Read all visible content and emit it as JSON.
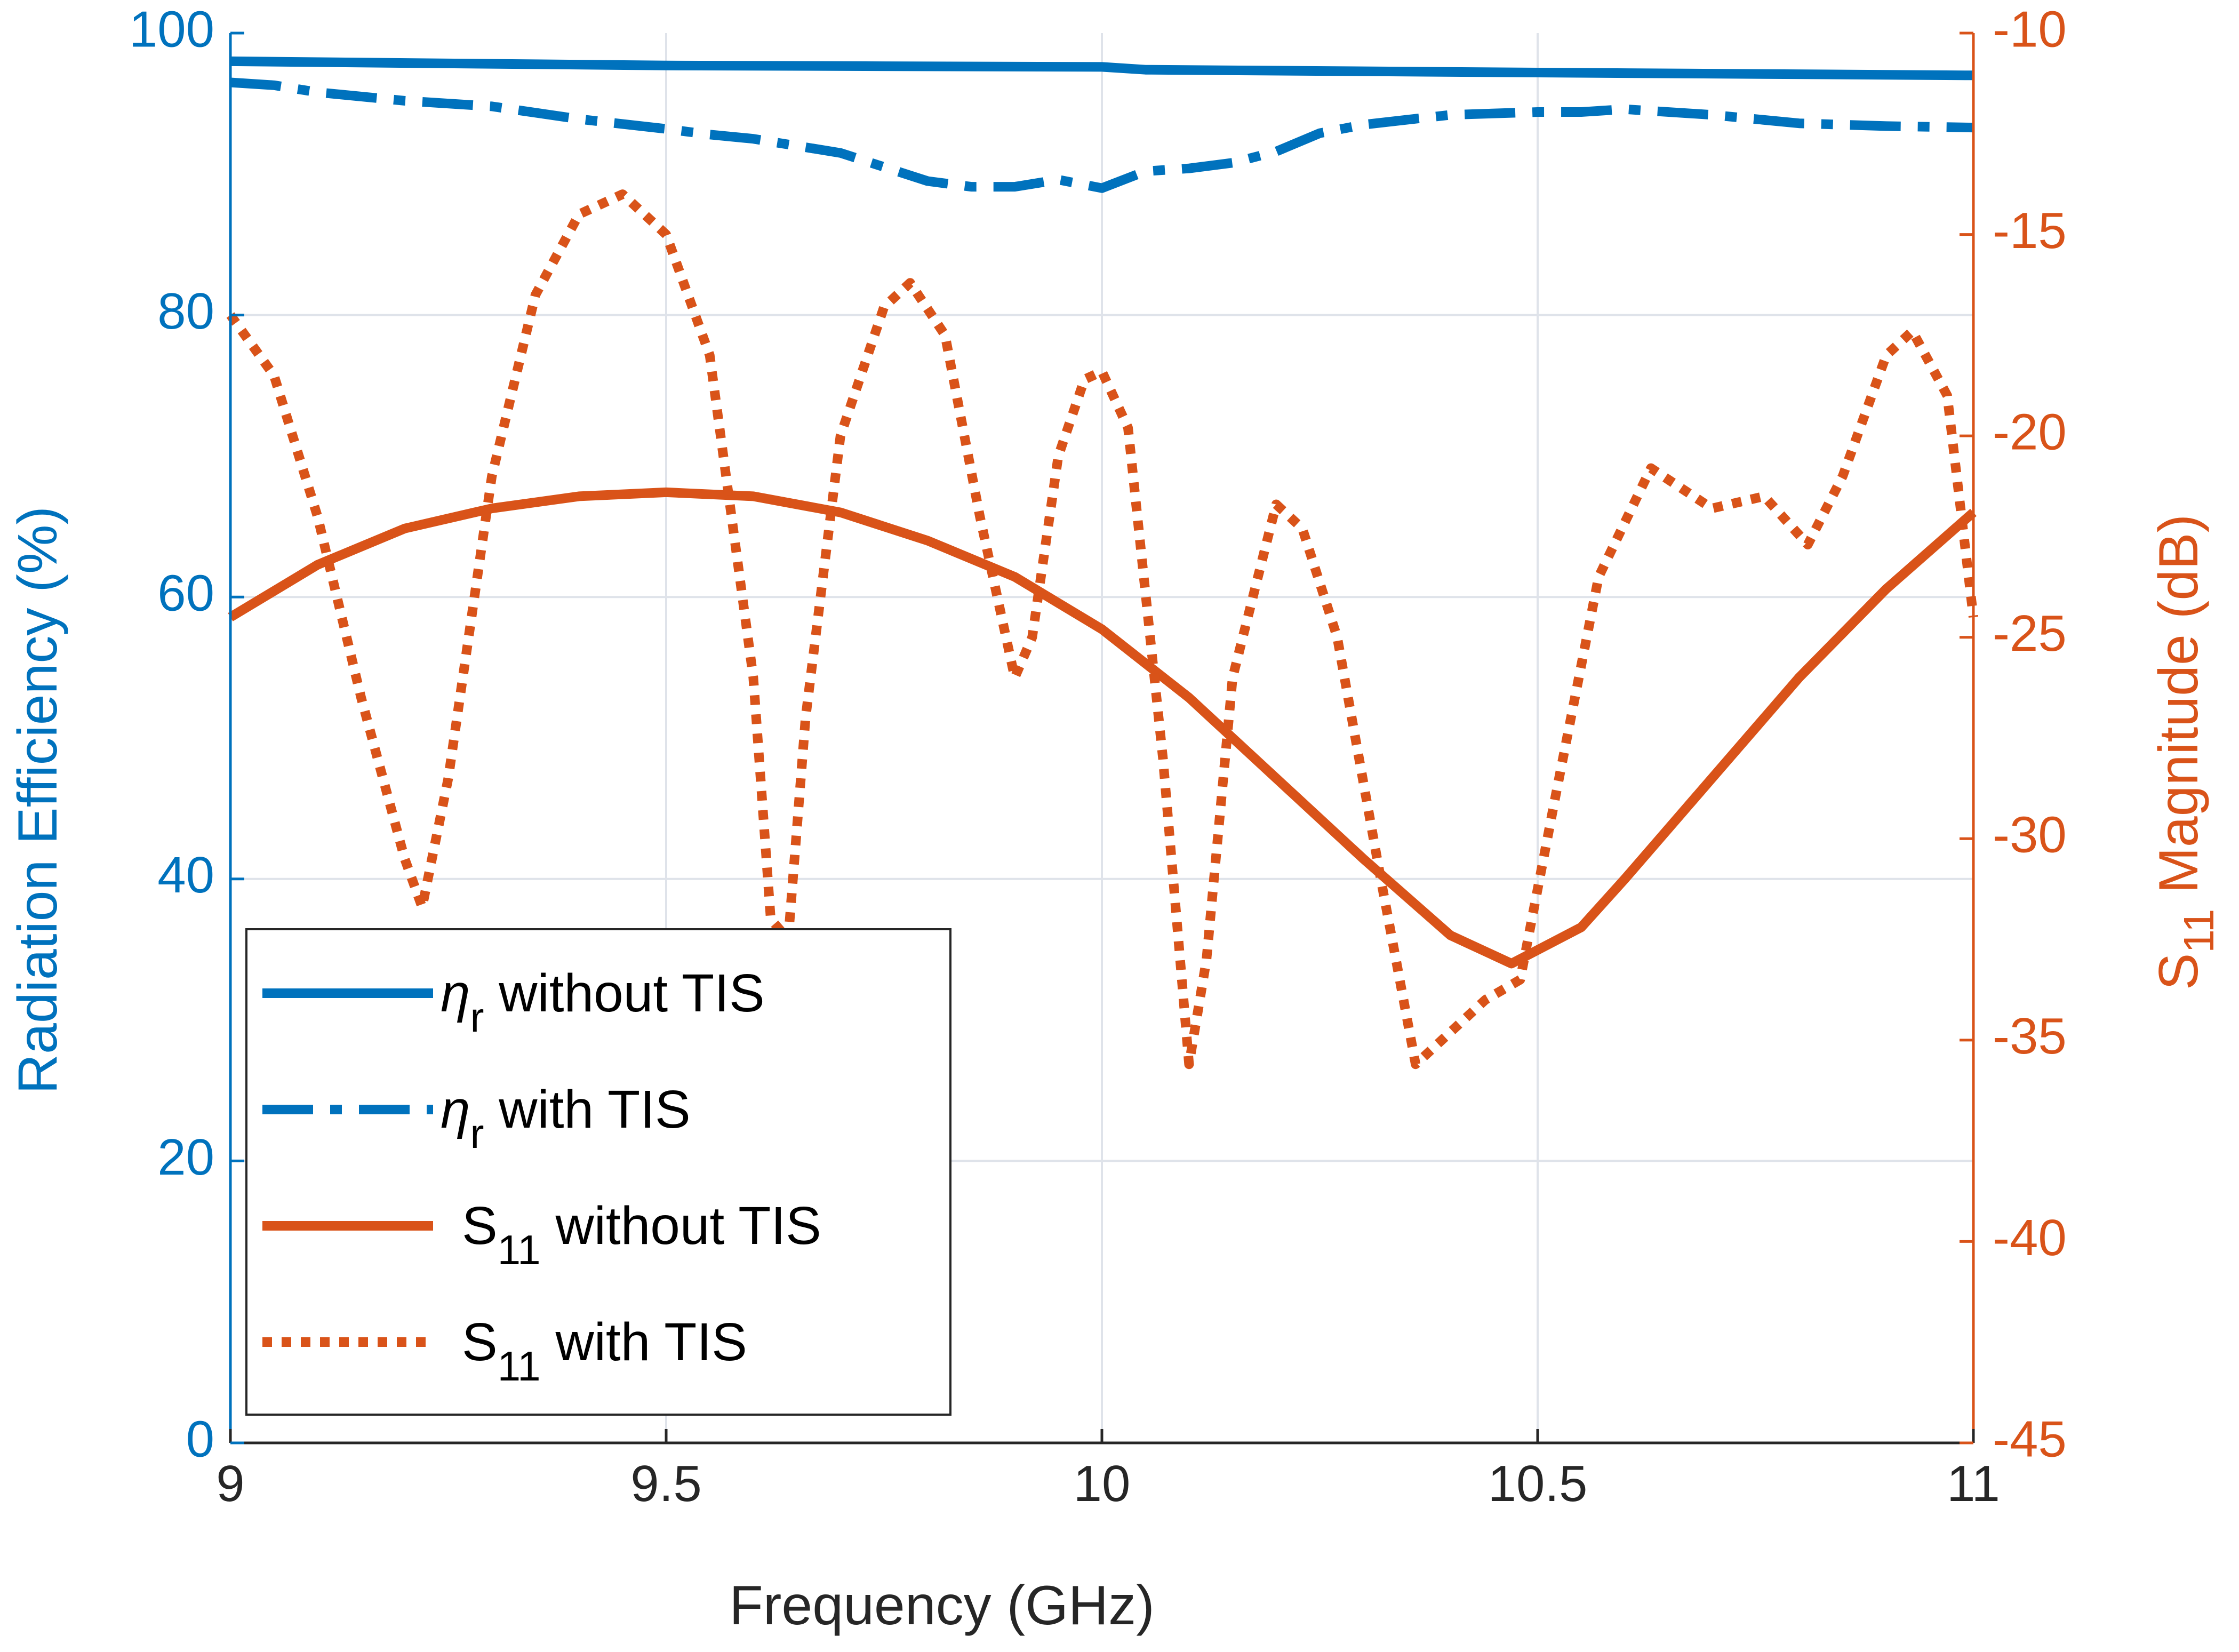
{
  "colors": {
    "blue": "#0072BD",
    "orange": "#D95319",
    "grid": "#DFE3EA",
    "text": "#262626"
  },
  "chart_data": {
    "type": "line",
    "title": "",
    "xlabel": "Frequency (GHz)",
    "ylabel_left": "Radiation Efficiency (%)",
    "ylabel_right": {
      "main": "S",
      "sub": "11",
      "rest": " Magnitude (dB)"
    },
    "xlim": [
      9,
      11
    ],
    "ylim_left": [
      0,
      100
    ],
    "ylim_right": [
      -45,
      -10
    ],
    "x_ticks": [
      "9",
      "9.5",
      "10",
      "10.5",
      "11"
    ],
    "x_tick_values": [
      9,
      9.5,
      10,
      10.5,
      11
    ],
    "y_left_ticks": [
      "0",
      "20",
      "40",
      "60",
      "80",
      "100"
    ],
    "y_left_tick_values": [
      0,
      20,
      40,
      60,
      80,
      100
    ],
    "y_right_ticks": [
      "-45",
      "-40",
      "-35",
      "-30",
      "-25",
      "-20",
      "-15",
      "-10"
    ],
    "y_right_tick_values": [
      -45,
      -40,
      -35,
      -30,
      -25,
      -20,
      -15,
      -10
    ],
    "grid": true,
    "legend_position": "bottom-left",
    "series": [
      {
        "name": "η_r without TIS",
        "legend": {
          "sym": "η",
          "sub": "r",
          "text": " without TIS"
        },
        "axis": "left",
        "color": "#0072BD",
        "style": "solid",
        "points": [
          [
            9,
            98.0
          ],
          [
            9.5,
            97.7
          ],
          [
            10,
            97.6
          ],
          [
            10.05,
            97.4
          ],
          [
            10.5,
            97.2
          ],
          [
            11,
            97.0
          ]
        ]
      },
      {
        "name": "η_r with TIS",
        "legend": {
          "sym": "η",
          "sub": "r",
          "text": " with TIS"
        },
        "axis": "left",
        "color": "#0072BD",
        "style": "dashdot",
        "points": [
          [
            9,
            96.5
          ],
          [
            9.05,
            96.3
          ],
          [
            9.1,
            95.8
          ],
          [
            9.2,
            95.2
          ],
          [
            9.3,
            94.8
          ],
          [
            9.4,
            93.9
          ],
          [
            9.5,
            93.2
          ],
          [
            9.55,
            92.8
          ],
          [
            9.6,
            92.5
          ],
          [
            9.7,
            91.5
          ],
          [
            9.8,
            89.5
          ],
          [
            9.85,
            89.1
          ],
          [
            9.9,
            89.1
          ],
          [
            9.95,
            89.6
          ],
          [
            10,
            89.0
          ],
          [
            10.05,
            90.2
          ],
          [
            10.1,
            90.4
          ],
          [
            10.15,
            90.8
          ],
          [
            10.2,
            91.6
          ],
          [
            10.25,
            92.9
          ],
          [
            10.3,
            93.5
          ],
          [
            10.4,
            94.2
          ],
          [
            10.5,
            94.4
          ],
          [
            10.55,
            94.4
          ],
          [
            10.6,
            94.6
          ],
          [
            10.7,
            94.2
          ],
          [
            10.8,
            93.6
          ],
          [
            10.9,
            93.4
          ],
          [
            11,
            93.3
          ]
        ]
      },
      {
        "name": "S11 without TIS",
        "legend": {
          "sym": "S",
          "sub": "11",
          "text": "  without TIS"
        },
        "axis": "right",
        "color": "#D95319",
        "style": "solid",
        "points": [
          [
            9,
            -24.5
          ],
          [
            9.1,
            -23.2
          ],
          [
            9.2,
            -22.3
          ],
          [
            9.3,
            -21.8
          ],
          [
            9.4,
            -21.5
          ],
          [
            9.5,
            -21.4
          ],
          [
            9.6,
            -21.5
          ],
          [
            9.7,
            -21.9
          ],
          [
            9.8,
            -22.6
          ],
          [
            9.9,
            -23.5
          ],
          [
            10,
            -24.8
          ],
          [
            10.1,
            -26.5
          ],
          [
            10.2,
            -28.5
          ],
          [
            10.3,
            -30.5
          ],
          [
            10.4,
            -32.4
          ],
          [
            10.47,
            -33.1
          ],
          [
            10.55,
            -32.2
          ],
          [
            10.6,
            -31.0
          ],
          [
            10.7,
            -28.5
          ],
          [
            10.8,
            -26.0
          ],
          [
            10.9,
            -23.8
          ],
          [
            11,
            -21.9
          ]
        ]
      },
      {
        "name": "S11 with TIS",
        "legend": {
          "sym": "S",
          "sub": "11",
          "text": "  with TIS"
        },
        "axis": "right",
        "color": "#D95319",
        "style": "dotted",
        "points": [
          [
            9,
            -17.0
          ],
          [
            9.05,
            -18.5
          ],
          [
            9.1,
            -22.0
          ],
          [
            9.15,
            -26.5
          ],
          [
            9.2,
            -30.5
          ],
          [
            9.22,
            -31.7
          ],
          [
            9.25,
            -28.5
          ],
          [
            9.3,
            -21.0
          ],
          [
            9.35,
            -16.5
          ],
          [
            9.4,
            -14.5
          ],
          [
            9.45,
            -14.0
          ],
          [
            9.5,
            -15.0
          ],
          [
            9.55,
            -18.0
          ],
          [
            9.6,
            -26.0
          ],
          [
            9.62,
            -32.0
          ],
          [
            9.64,
            -32.5
          ],
          [
            9.66,
            -27.0
          ],
          [
            9.7,
            -20.0
          ],
          [
            9.75,
            -16.8
          ],
          [
            9.78,
            -16.2
          ],
          [
            9.82,
            -17.5
          ],
          [
            9.86,
            -22.0
          ],
          [
            9.9,
            -26.0
          ],
          [
            9.92,
            -25.0
          ],
          [
            9.95,
            -20.5
          ],
          [
            9.98,
            -18.6
          ],
          [
            10,
            -18.4
          ],
          [
            10.03,
            -19.8
          ],
          [
            10.07,
            -28.0
          ],
          [
            10.1,
            -35.6
          ],
          [
            10.12,
            -33.0
          ],
          [
            10.15,
            -26.0
          ],
          [
            10.2,
            -21.7
          ],
          [
            10.23,
            -22.3
          ],
          [
            10.27,
            -25.0
          ],
          [
            10.32,
            -31.0
          ],
          [
            10.36,
            -35.6
          ],
          [
            10.4,
            -34.8
          ],
          [
            10.44,
            -34.0
          ],
          [
            10.48,
            -33.5
          ],
          [
            10.52,
            -29.0
          ],
          [
            10.57,
            -23.5
          ],
          [
            10.63,
            -20.8
          ],
          [
            10.7,
            -21.8
          ],
          [
            10.76,
            -21.5
          ],
          [
            10.81,
            -22.7
          ],
          [
            10.85,
            -21.0
          ],
          [
            10.9,
            -18.0
          ],
          [
            10.93,
            -17.4
          ],
          [
            10.97,
            -19.0
          ],
          [
            11,
            -24.5
          ]
        ]
      }
    ]
  }
}
